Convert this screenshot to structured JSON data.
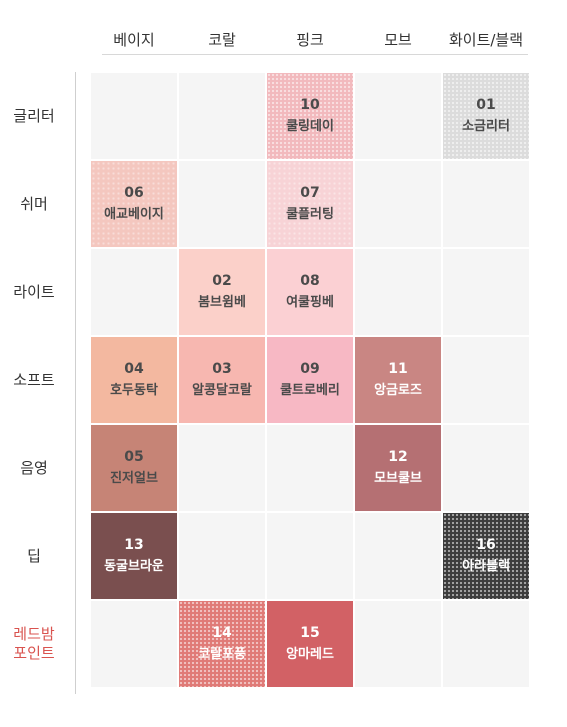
{
  "columns": [
    "베이지",
    "코랄",
    "핑크",
    "모브",
    "화이트/블랙"
  ],
  "rows": [
    {
      "label": [
        "글리터"
      ]
    },
    {
      "label": [
        "쉬머"
      ]
    },
    {
      "label": [
        "라이트"
      ]
    },
    {
      "label": [
        "소프트"
      ]
    },
    {
      "label": [
        "음영"
      ]
    },
    {
      "label": [
        "딥"
      ]
    },
    {
      "label": [
        "레드밤",
        "포인트"
      ],
      "accent": true
    }
  ],
  "colors": {
    "empty_cell": "#f5f5f5",
    "accent_label": "#d9534f"
  },
  "swatches": [
    {
      "row": 0,
      "col": 2,
      "num": "10",
      "name": "쿨링데이",
      "color": "#f2b9bd",
      "texture": "glitter",
      "text": "dark"
    },
    {
      "row": 0,
      "col": 4,
      "num": "01",
      "name": "소금리터",
      "color": "#dcdcdc",
      "texture": "glitter",
      "text": "dark"
    },
    {
      "row": 1,
      "col": 0,
      "num": "06",
      "name": "애교베이지",
      "color": "#f4c7bf",
      "texture": "shimmer",
      "text": "dark"
    },
    {
      "row": 1,
      "col": 2,
      "num": "07",
      "name": "쿨플러팅",
      "color": "#f7d3d6",
      "texture": "shimmer",
      "text": "dark"
    },
    {
      "row": 2,
      "col": 1,
      "num": "02",
      "name": "봄브윔베",
      "color": "#fbd0c9",
      "texture": "flat",
      "text": "dark"
    },
    {
      "row": 2,
      "col": 2,
      "num": "08",
      "name": "여쿨핑베",
      "color": "#fbd0d3",
      "texture": "flat",
      "text": "dark"
    },
    {
      "row": 3,
      "col": 0,
      "num": "04",
      "name": "호두동탁",
      "color": "#f3b8a0",
      "texture": "flat",
      "text": "dark"
    },
    {
      "row": 3,
      "col": 1,
      "num": "03",
      "name": "알콩달코랄",
      "color": "#f7b7b0",
      "texture": "flat",
      "text": "dark"
    },
    {
      "row": 3,
      "col": 2,
      "num": "09",
      "name": "쿨트로베리",
      "color": "#f7b8c4",
      "texture": "flat",
      "text": "dark"
    },
    {
      "row": 3,
      "col": 3,
      "num": "11",
      "name": "앙금로즈",
      "color": "#c98683",
      "texture": "flat",
      "text": "light"
    },
    {
      "row": 4,
      "col": 0,
      "num": "05",
      "name": "진저얼브",
      "color": "#c68476",
      "texture": "flat",
      "text": "dark"
    },
    {
      "row": 4,
      "col": 3,
      "num": "12",
      "name": "모브쿨브",
      "color": "#b57073",
      "texture": "flat",
      "text": "light"
    },
    {
      "row": 5,
      "col": 0,
      "num": "13",
      "name": "동굴브라운",
      "color": "#7a4f4f",
      "texture": "flat",
      "text": "light"
    },
    {
      "row": 5,
      "col": 4,
      "num": "16",
      "name": "아라블랙",
      "color": "#3d3d3d",
      "texture": "glitter",
      "text": "light"
    },
    {
      "row": 6,
      "col": 1,
      "num": "14",
      "name": "코랄포풍",
      "color": "#e07a77",
      "texture": "glitter",
      "text": "light"
    },
    {
      "row": 6,
      "col": 2,
      "num": "15",
      "name": "앙마레드",
      "color": "#d26165",
      "texture": "flat",
      "text": "light"
    }
  ]
}
